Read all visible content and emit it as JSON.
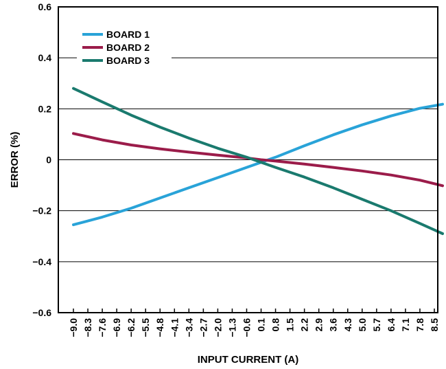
{
  "chart_data": {
    "type": "line",
    "title": "",
    "xlabel": "INPUT CURRENT (A)",
    "ylabel": "ERROR (%)",
    "xlim": [
      -9.0,
      8.9
    ],
    "ylim": [
      -0.6,
      0.6
    ],
    "x_ticks": [
      "-9.0",
      "-8.3",
      "-7.6",
      "-6.9",
      "-6.2",
      "-5.5",
      "-4.8",
      "-4.1",
      "-3.4",
      "-2.7",
      "-2.0",
      "-1.3",
      "-0.6",
      "0.1",
      "0.8",
      "1.5",
      "2.2",
      "2.9",
      "3.6",
      "4.3",
      "5.0",
      "5.7",
      "6.4",
      "7.1",
      "7.8",
      "8.5"
    ],
    "y_ticks": [
      "0.6",
      "0.4",
      "0.2",
      "0",
      "−0.2",
      "−0.4",
      "−0.6"
    ],
    "grid": "horizontal",
    "legend_position": "top-left",
    "series": [
      {
        "name": "BOARD 1",
        "color": "#29a3d8",
        "x": [
          -9.0,
          -7.6,
          -6.2,
          -4.8,
          -3.4,
          -2.0,
          -0.6,
          0.1,
          0.8,
          2.2,
          3.6,
          5.0,
          6.4,
          7.8,
          8.9
        ],
        "y": [
          -0.255,
          -0.225,
          -0.19,
          -0.15,
          -0.11,
          -0.07,
          -0.03,
          -0.01,
          0.01,
          0.055,
          0.098,
          0.137,
          0.172,
          0.202,
          0.218
        ]
      },
      {
        "name": "BOARD 2",
        "color": "#9b1c4a",
        "x": [
          -9.0,
          -7.6,
          -6.2,
          -4.8,
          -3.4,
          -2.0,
          -0.6,
          0.1,
          0.8,
          2.2,
          3.6,
          5.0,
          6.4,
          7.8,
          8.9
        ],
        "y": [
          0.103,
          0.078,
          0.058,
          0.043,
          0.03,
          0.018,
          0.007,
          0.0,
          -0.005,
          -0.017,
          -0.03,
          -0.044,
          -0.06,
          -0.08,
          -0.102
        ]
      },
      {
        "name": "BOARD 3",
        "color": "#1a7a6e",
        "x": [
          -9.0,
          -7.6,
          -6.2,
          -4.8,
          -3.4,
          -2.0,
          -0.6,
          0.1,
          0.8,
          2.2,
          3.6,
          5.0,
          6.4,
          7.8,
          8.9
        ],
        "y": [
          0.28,
          0.227,
          0.175,
          0.128,
          0.085,
          0.045,
          0.01,
          -0.01,
          -0.03,
          -0.068,
          -0.11,
          -0.155,
          -0.2,
          -0.25,
          -0.29
        ]
      }
    ]
  }
}
